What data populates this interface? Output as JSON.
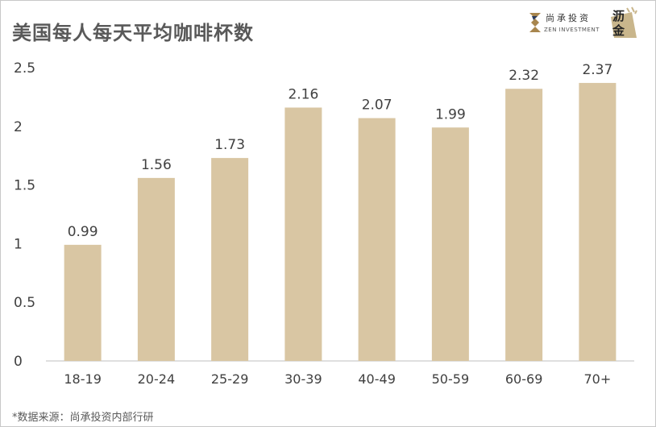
{
  "title": "美国每人每天平均咖啡杯数",
  "source": "*数据来源：尚承投资内部行研",
  "logos": {
    "zen_cn": "尚承投资",
    "zen_en": "ZEN INVESTMENT",
    "badge_line1": "沥",
    "badge_line2": "金"
  },
  "colors": {
    "bar": "#D9C6A3",
    "axis": "#BFBFBF",
    "text": "#404040"
  },
  "chart_data": {
    "type": "bar",
    "title": "美国每人每天平均咖啡杯数",
    "xlabel": "",
    "ylabel": "",
    "categories": [
      "18-19",
      "20-24",
      "25-29",
      "30-39",
      "40-49",
      "50-59",
      "60-69",
      "70+"
    ],
    "values": [
      0.99,
      1.56,
      1.73,
      2.16,
      2.07,
      1.99,
      2.32,
      2.37
    ],
    "value_labels": [
      "0.99",
      "1.56",
      "1.73",
      "2.16",
      "2.07",
      "1.99",
      "2.32",
      "2.37"
    ],
    "yticks": [
      "0",
      "0.5",
      "1",
      "1.5",
      "2",
      "2.5"
    ],
    "ylim": [
      0,
      2.5
    ],
    "grid": false,
    "legend": "none"
  }
}
